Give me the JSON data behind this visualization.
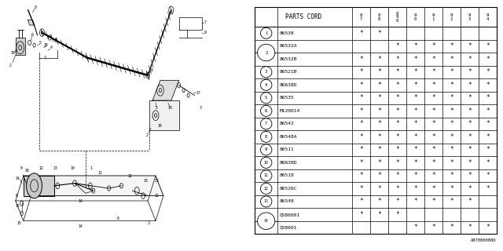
{
  "bg_color": "#ffffff",
  "line_color": "#000000",
  "text_color": "#000000",
  "footnote": "A870000080",
  "rows": [
    {
      "num": "1",
      "part": "86538",
      "marks": [
        1,
        1,
        0,
        0,
        0,
        0,
        0,
        0
      ]
    },
    {
      "num": "2",
      "part": "86532A",
      "marks": [
        0,
        0,
        1,
        1,
        1,
        1,
        1,
        1
      ]
    },
    {
      "num": "2",
      "part": "86532B",
      "marks": [
        1,
        1,
        1,
        1,
        1,
        1,
        1,
        1
      ]
    },
    {
      "num": "3",
      "part": "86521B",
      "marks": [
        1,
        1,
        1,
        1,
        1,
        1,
        1,
        1
      ]
    },
    {
      "num": "4",
      "part": "86638D",
      "marks": [
        1,
        1,
        1,
        1,
        1,
        1,
        1,
        1
      ]
    },
    {
      "num": "5",
      "part": "86535",
      "marks": [
        1,
        1,
        1,
        1,
        1,
        1,
        1,
        1
      ]
    },
    {
      "num": "6",
      "part": "M120014",
      "marks": [
        1,
        1,
        1,
        1,
        1,
        1,
        1,
        1
      ]
    },
    {
      "num": "7",
      "part": "86542",
      "marks": [
        1,
        1,
        1,
        1,
        1,
        1,
        1,
        1
      ]
    },
    {
      "num": "8",
      "part": "86548A",
      "marks": [
        1,
        1,
        1,
        1,
        1,
        1,
        1,
        1
      ]
    },
    {
      "num": "9",
      "part": "86511",
      "marks": [
        1,
        1,
        1,
        1,
        1,
        1,
        1,
        1
      ]
    },
    {
      "num": "10",
      "part": "86638D",
      "marks": [
        1,
        1,
        1,
        1,
        1,
        1,
        1,
        1
      ]
    },
    {
      "num": "11",
      "part": "86518",
      "marks": [
        1,
        1,
        1,
        1,
        1,
        1,
        1,
        1
      ]
    },
    {
      "num": "12",
      "part": "86526C",
      "marks": [
        1,
        1,
        1,
        1,
        1,
        1,
        1,
        1
      ]
    },
    {
      "num": "13",
      "part": "86548",
      "marks": [
        1,
        1,
        1,
        1,
        1,
        1,
        1,
        0
      ]
    },
    {
      "num": "14",
      "part": "Q586001",
      "marks": [
        1,
        1,
        1,
        0,
        0,
        0,
        0,
        0
      ]
    },
    {
      "num": "14",
      "part": "Q58601",
      "marks": [
        0,
        0,
        0,
        1,
        1,
        1,
        1,
        1
      ]
    }
  ],
  "years": [
    "8\n7",
    "8\n8",
    "8\n9\n0",
    "9\n0",
    "9\n1",
    "9\n2",
    "9\n3",
    "9\n4"
  ]
}
